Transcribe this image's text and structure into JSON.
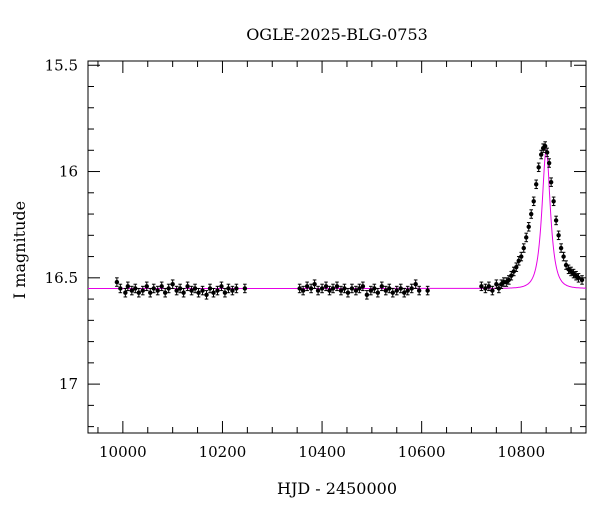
{
  "chart_data": {
    "type": "scatter",
    "title": "OGLE-2025-BLG-0753",
    "xlabel": "HJD - 2450000",
    "ylabel": "I magnitude",
    "xlim": [
      9930,
      10930
    ],
    "ylim": [
      17.23,
      15.48
    ],
    "y_inverted": true,
    "grid": false,
    "x_major_ticks": [
      10000,
      10200,
      10400,
      10600,
      10800
    ],
    "y_major_ticks": [
      15.5,
      16,
      16.5,
      17
    ],
    "x_tick_labels": [
      "10000",
      "10200",
      "10400",
      "10600",
      "10800"
    ],
    "y_tick_labels": [
      "15.5",
      "16",
      "16.5",
      "17"
    ],
    "colors": {
      "points": "#000000",
      "model": "#e600e6",
      "axes": "#000000"
    },
    "model": {
      "name": "",
      "baseline": 16.55,
      "t0": 10850,
      "peak_mag": 15.9,
      "tE": 13
    },
    "series": [
      {
        "type": "points_with_errorbars",
        "x": [
          9988,
          9995,
          10005,
          10010,
          10018,
          10025,
          10032,
          10040,
          10048,
          10055,
          10062,
          10070,
          10078,
          10085,
          10092,
          10100,
          10108,
          10115,
          10122,
          10130,
          10138,
          10145,
          10152,
          10160,
          10168,
          10175,
          10182,
          10190,
          10198,
          10205,
          10212,
          10220,
          10228,
          10245,
          10355,
          10362,
          10370,
          10378,
          10385,
          10392,
          10400,
          10408,
          10415,
          10422,
          10430,
          10438,
          10445,
          10452,
          10460,
          10468,
          10475,
          10482,
          10490,
          10498,
          10505,
          10512,
          10520,
          10528,
          10535,
          10542,
          10550,
          10558,
          10565,
          10572,
          10580,
          10588,
          10595,
          10612,
          10720,
          10728,
          10735,
          10742,
          10750,
          10755,
          10760,
          10765,
          10770,
          10775,
          10780,
          10785,
          10790,
          10795,
          10800,
          10805,
          10810,
          10815,
          10820,
          10825,
          10830,
          10835,
          10840,
          10844,
          10848,
          10852,
          10856,
          10860,
          10865,
          10870,
          10875,
          10880,
          10885,
          10890,
          10895,
          10900,
          10905,
          10910,
          10915,
          10922
        ],
        "y": [
          16.52,
          16.55,
          16.57,
          16.54,
          16.56,
          16.55,
          16.57,
          16.56,
          16.54,
          16.57,
          16.55,
          16.56,
          16.54,
          16.57,
          16.55,
          16.53,
          16.56,
          16.55,
          16.57,
          16.54,
          16.56,
          16.55,
          16.57,
          16.56,
          16.58,
          16.55,
          16.57,
          16.56,
          16.54,
          16.57,
          16.55,
          16.56,
          16.55,
          16.55,
          16.55,
          16.56,
          16.54,
          16.55,
          16.53,
          16.56,
          16.55,
          16.54,
          16.56,
          16.55,
          16.54,
          16.56,
          16.55,
          16.57,
          16.55,
          16.56,
          16.55,
          16.54,
          16.58,
          16.56,
          16.55,
          16.57,
          16.54,
          16.56,
          16.55,
          16.57,
          16.56,
          16.55,
          16.57,
          16.56,
          16.55,
          16.53,
          16.56,
          16.56,
          16.54,
          16.55,
          16.54,
          16.56,
          16.53,
          16.55,
          16.53,
          16.52,
          16.52,
          16.51,
          16.49,
          16.47,
          16.45,
          16.42,
          16.4,
          16.36,
          16.31,
          16.26,
          16.2,
          16.14,
          16.06,
          15.98,
          15.92,
          15.89,
          15.88,
          15.91,
          15.96,
          16.05,
          16.14,
          16.23,
          16.3,
          16.36,
          16.4,
          16.44,
          16.46,
          16.47,
          16.48,
          16.49,
          16.5,
          16.51
        ],
        "err": [
          0.02,
          0.02,
          0.02,
          0.02,
          0.02,
          0.02,
          0.02,
          0.02,
          0.02,
          0.02,
          0.02,
          0.02,
          0.02,
          0.02,
          0.02,
          0.02,
          0.02,
          0.02,
          0.02,
          0.02,
          0.02,
          0.02,
          0.02,
          0.02,
          0.02,
          0.02,
          0.02,
          0.02,
          0.02,
          0.02,
          0.02,
          0.02,
          0.02,
          0.02,
          0.02,
          0.02,
          0.02,
          0.02,
          0.02,
          0.02,
          0.02,
          0.02,
          0.02,
          0.02,
          0.02,
          0.02,
          0.02,
          0.02,
          0.02,
          0.02,
          0.02,
          0.02,
          0.02,
          0.02,
          0.02,
          0.02,
          0.02,
          0.02,
          0.02,
          0.02,
          0.02,
          0.02,
          0.02,
          0.02,
          0.02,
          0.02,
          0.02,
          0.02,
          0.02,
          0.02,
          0.02,
          0.02,
          0.02,
          0.02,
          0.02,
          0.02,
          0.02,
          0.02,
          0.02,
          0.02,
          0.02,
          0.02,
          0.02,
          0.02,
          0.02,
          0.02,
          0.02,
          0.02,
          0.02,
          0.02,
          0.02,
          0.02,
          0.02,
          0.02,
          0.02,
          0.02,
          0.02,
          0.02,
          0.02,
          0.02,
          0.02,
          0.02,
          0.02,
          0.02,
          0.02,
          0.02,
          0.02,
          0.02
        ]
      }
    ]
  }
}
